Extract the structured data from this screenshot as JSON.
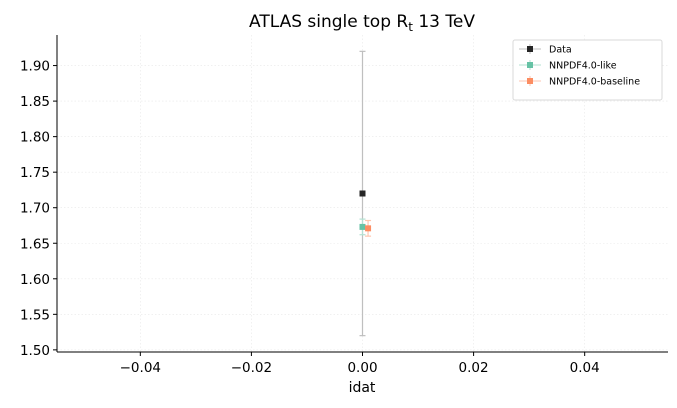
{
  "chart_data": {
    "type": "scatter",
    "title": "ATLAS single top R",
    "title_subscript": "t",
    "title_suffix": " 13 TeV",
    "xlabel": "idat",
    "ylabel": "",
    "xlim": [
      -0.055,
      0.055
    ],
    "ylim": [
      1.497,
      1.943
    ],
    "xticks": [
      -0.04,
      -0.02,
      0.0,
      0.02,
      0.04
    ],
    "xtick_labels": [
      "−0.04",
      "−0.02",
      "0.00",
      "0.02",
      "0.04"
    ],
    "yticks": [
      1.5,
      1.55,
      1.6,
      1.65,
      1.7,
      1.75,
      1.8,
      1.85,
      1.9
    ],
    "ytick_labels": [
      "1.50",
      "1.55",
      "1.60",
      "1.65",
      "1.70",
      "1.75",
      "1.80",
      "1.85",
      "1.90"
    ],
    "grid": true,
    "legend_position": "top-right",
    "series": [
      {
        "name": "Data",
        "color": "#262626",
        "ecolor": "#bfbfbf",
        "x": 0.0,
        "y": 1.72,
        "yerr": 0.2
      },
      {
        "name": "NNPDF4.0-like",
        "color": "#66c2a5",
        "ecolor": "#b3e0d2",
        "x": 0.0,
        "y": 1.673,
        "yerr": 0.011
      },
      {
        "name": "NNPDF4.0-baseline",
        "color": "#fc8d62",
        "ecolor": "#fdc6b0",
        "x": 0.001,
        "y": 1.671,
        "yerr": 0.011
      }
    ]
  }
}
